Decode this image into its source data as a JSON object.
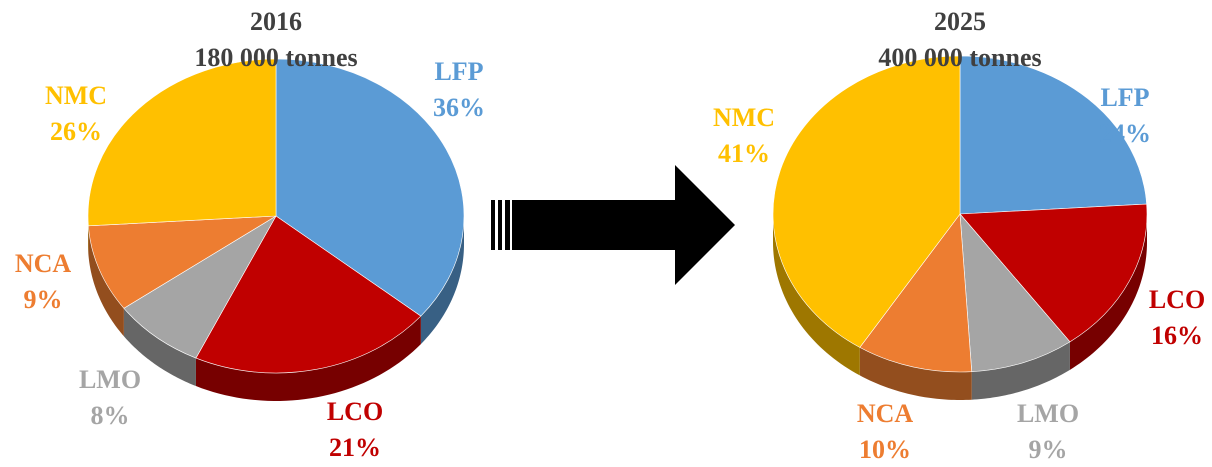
{
  "colors": {
    "LFP": "#5B9BD5",
    "LCO": "#C00000",
    "LMO": "#A5A5A5",
    "NCA": "#ED7D31",
    "NMC": "#FFC000",
    "title": "#404040",
    "arrow": "#000000"
  },
  "chart_data": [
    {
      "type": "pie",
      "title": "2016",
      "subtitle": "180 000 tonnes",
      "categories": [
        "LFP",
        "LCO",
        "LMO",
        "NCA",
        "NMC"
      ],
      "values": [
        36,
        21,
        8,
        9,
        26
      ],
      "value_labels": [
        "36%",
        "21%",
        "8%",
        "9%",
        "26%"
      ],
      "style": "3d",
      "legend": "none"
    },
    {
      "type": "pie",
      "title": "2025",
      "subtitle": "400 000 tonnes",
      "categories": [
        "LFP",
        "LCO",
        "LMO",
        "NCA",
        "NMC"
      ],
      "values": [
        24,
        16,
        9,
        10,
        41
      ],
      "value_labels": [
        "24%",
        "16%",
        "9%",
        "10%",
        "41%"
      ],
      "style": "3d",
      "legend": "none"
    }
  ]
}
